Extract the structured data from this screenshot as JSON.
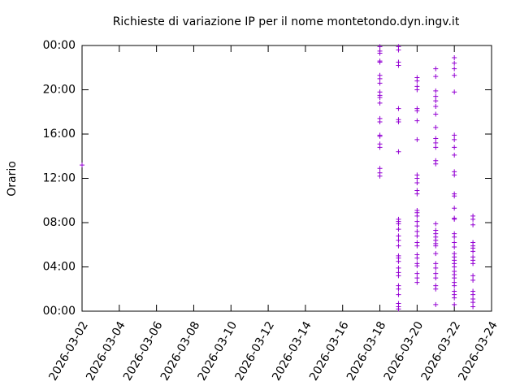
{
  "chart_data": {
    "type": "scatter",
    "title": "Richieste di variazione IP per il nome montetondo.dyn.ingv.it",
    "y_label": "Orario",
    "color": "#9400d3",
    "xlim": [
      "2026-03-02",
      "2026-03-24"
    ],
    "xticks": [
      "2026-03-02",
      "2026-03-04",
      "2026-03-06",
      "2026-03-08",
      "2026-03-10",
      "2026-03-12",
      "2026-03-14",
      "2026-03-16",
      "2026-03-18",
      "2026-03-20",
      "2026-03-22",
      "2026-03-24"
    ],
    "ylim": [
      0,
      24
    ],
    "yticks": [
      {
        "value": 0,
        "label": "00:00"
      },
      {
        "value": 4,
        "label": "04:00"
      },
      {
        "value": 8,
        "label": "08:00"
      },
      {
        "value": 12,
        "label": "12:00"
      },
      {
        "value": 16,
        "label": "16:00"
      },
      {
        "value": 20,
        "label": "20:00"
      },
      {
        "value": 24,
        "label": "00:00"
      }
    ],
    "x": [
      "2026-03-02",
      "2026-03-18",
      "2026-03-18",
      "2026-03-18",
      "2026-03-18",
      "2026-03-18",
      "2026-03-18",
      "2026-03-18",
      "2026-03-18",
      "2026-03-18",
      "2026-03-18",
      "2026-03-18",
      "2026-03-18",
      "2026-03-18",
      "2026-03-18",
      "2026-03-18",
      "2026-03-18",
      "2026-03-18",
      "2026-03-18",
      "2026-03-18",
      "2026-03-18",
      "2026-03-18",
      "2026-03-19",
      "2026-03-19",
      "2026-03-19",
      "2026-03-19",
      "2026-03-19",
      "2026-03-19",
      "2026-03-19",
      "2026-03-19",
      "2026-03-19",
      "2026-03-19",
      "2026-03-19",
      "2026-03-19",
      "2026-03-19",
      "2026-03-19",
      "2026-03-19",
      "2026-03-19",
      "2026-03-19",
      "2026-03-19",
      "2026-03-19",
      "2026-03-19",
      "2026-03-19",
      "2026-03-19",
      "2026-03-19",
      "2026-03-19",
      "2026-03-19",
      "2026-03-19",
      "2026-03-19",
      "2026-03-20",
      "2026-03-20",
      "2026-03-20",
      "2026-03-20",
      "2026-03-20",
      "2026-03-20",
      "2026-03-20",
      "2026-03-20",
      "2026-03-20",
      "2026-03-20",
      "2026-03-20",
      "2026-03-20",
      "2026-03-20",
      "2026-03-20",
      "2026-03-20",
      "2026-03-20",
      "2026-03-20",
      "2026-03-20",
      "2026-03-20",
      "2026-03-20",
      "2026-03-20",
      "2026-03-20",
      "2026-03-20",
      "2026-03-20",
      "2026-03-20",
      "2026-03-20",
      "2026-03-20",
      "2026-03-20",
      "2026-03-20",
      "2026-03-21",
      "2026-03-21",
      "2026-03-21",
      "2026-03-21",
      "2026-03-21",
      "2026-03-21",
      "2026-03-21",
      "2026-03-21",
      "2026-03-21",
      "2026-03-21",
      "2026-03-21",
      "2026-03-21",
      "2026-03-21",
      "2026-03-21",
      "2026-03-21",
      "2026-03-21",
      "2026-03-21",
      "2026-03-21",
      "2026-03-21",
      "2026-03-21",
      "2026-03-21",
      "2026-03-21",
      "2026-03-21",
      "2026-03-21",
      "2026-03-21",
      "2026-03-21",
      "2026-03-21",
      "2026-03-21",
      "2026-03-22",
      "2026-03-22",
      "2026-03-22",
      "2026-03-22",
      "2026-03-22",
      "2026-03-22",
      "2026-03-22",
      "2026-03-22",
      "2026-03-22",
      "2026-03-22",
      "2026-03-22",
      "2026-03-22",
      "2026-03-22",
      "2026-03-22",
      "2026-03-22",
      "2026-03-22",
      "2026-03-22",
      "2026-03-22",
      "2026-03-22",
      "2026-03-22",
      "2026-03-22",
      "2026-03-22",
      "2026-03-22",
      "2026-03-22",
      "2026-03-22",
      "2026-03-22",
      "2026-03-22",
      "2026-03-22",
      "2026-03-22",
      "2026-03-22",
      "2026-03-22",
      "2026-03-22",
      "2026-03-22",
      "2026-03-22",
      "2026-03-23",
      "2026-03-23",
      "2026-03-23",
      "2026-03-23",
      "2026-03-23",
      "2026-03-23",
      "2026-03-23",
      "2026-03-23",
      "2026-03-23",
      "2026-03-23",
      "2026-03-23",
      "2026-03-23",
      "2026-03-23",
      "2026-03-23",
      "2026-03-23",
      "2026-03-23",
      "2026-03-23"
    ],
    "values": [
      13.2,
      23.9,
      23.5,
      23.3,
      22.6,
      22.5,
      21.3,
      21.0,
      20.6,
      19.8,
      19.5,
      19.3,
      18.8,
      17.4,
      17.1,
      15.9,
      15.8,
      15.1,
      14.8,
      12.9,
      12.5,
      12.2,
      23.9,
      23.6,
      22.5,
      22.2,
      18.3,
      17.3,
      17.1,
      14.4,
      8.3,
      8.1,
      7.9,
      7.4,
      6.8,
      6.4,
      5.9,
      5.0,
      4.8,
      4.5,
      3.9,
      3.5,
      3.2,
      2.3,
      2.0,
      1.5,
      0.7,
      0.4,
      0.2,
      21.1,
      20.8,
      20.3,
      20.0,
      18.3,
      18.1,
      17.2,
      15.5,
      12.3,
      12.0,
      11.6,
      10.9,
      10.6,
      9.1,
      8.9,
      8.6,
      8.1,
      7.7,
      7.2,
      6.8,
      6.2,
      5.9,
      5.1,
      4.8,
      4.3,
      4.1,
      3.4,
      3.0,
      2.6,
      21.9,
      21.2,
      19.9,
      19.4,
      19.0,
      18.5,
      17.8,
      16.6,
      15.6,
      15.2,
      14.8,
      13.6,
      13.3,
      7.9,
      7.3,
      7.0,
      6.7,
      6.4,
      6.1,
      5.9,
      5.2,
      4.3,
      3.9,
      3.4,
      3.0,
      2.3,
      2.0,
      0.6,
      22.9,
      22.4,
      21.9,
      21.3,
      19.8,
      15.9,
      15.5,
      14.8,
      14.1,
      12.6,
      12.3,
      10.6,
      10.4,
      9.3,
      8.4,
      8.3,
      7.0,
      6.7,
      6.2,
      5.8,
      5.2,
      4.9,
      4.6,
      4.3,
      4.0,
      3.6,
      3.3,
      3.0,
      2.6,
      2.3,
      1.8,
      1.5,
      1.2,
      0.6,
      8.6,
      8.3,
      7.8,
      6.2,
      5.9,
      5.7,
      5.4,
      4.9,
      4.6,
      4.3,
      3.2,
      2.8,
      1.8,
      1.5,
      1.1,
      0.8,
      0.4
    ]
  }
}
